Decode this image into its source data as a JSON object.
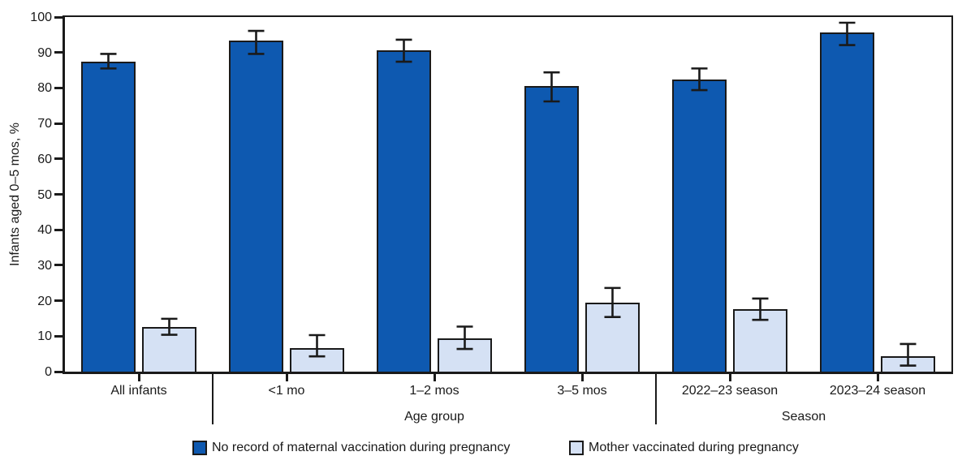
{
  "chart_data": {
    "type": "bar",
    "title": "",
    "ylabel": "Infants aged 0–5 mos, %",
    "xlabel_sections": [
      {
        "label": "Age group",
        "categories": [
          "<1 mo",
          "1–2 mos",
          "3–5 mos"
        ]
      },
      {
        "label": "Season",
        "categories": [
          "2022–23 season",
          "2023–24 season"
        ]
      }
    ],
    "categories": [
      "All infants",
      "<1 mo",
      "1–2 mos",
      "3–5 mos",
      "2022–23 season",
      "2023–24 season"
    ],
    "series": [
      {
        "name": "No record of maternal vaccination during pregnancy",
        "color": "#0E59B0",
        "values": [
          87.5,
          93.3,
          90.7,
          80.5,
          82.4,
          95.6
        ],
        "ci_low": [
          85.5,
          89.6,
          87.4,
          76.2,
          79.4,
          92.1
        ],
        "ci_high": [
          89.6,
          96.1,
          93.6,
          84.4,
          85.5,
          98.4
        ]
      },
      {
        "name": "Mother vaccinated during pregnancy",
        "color": "#D5E1F4",
        "values": [
          12.5,
          6.7,
          9.3,
          19.5,
          17.6,
          4.4
        ],
        "ci_low": [
          10.4,
          4.3,
          6.4,
          15.4,
          14.6,
          1.7
        ],
        "ci_high": [
          14.9,
          10.3,
          12.7,
          23.6,
          20.6,
          7.8
        ]
      }
    ],
    "ylim": [
      0,
      100
    ],
    "yticks": [
      0,
      10,
      20,
      30,
      40,
      50,
      60,
      70,
      80,
      90,
      100
    ],
    "grid": "off",
    "legend_position": "bottom",
    "error_bars": true,
    "colors": {
      "bar_dark": "#0E59B0",
      "bar_light": "#D5E1F4",
      "axis": "#1A1A1A"
    }
  }
}
